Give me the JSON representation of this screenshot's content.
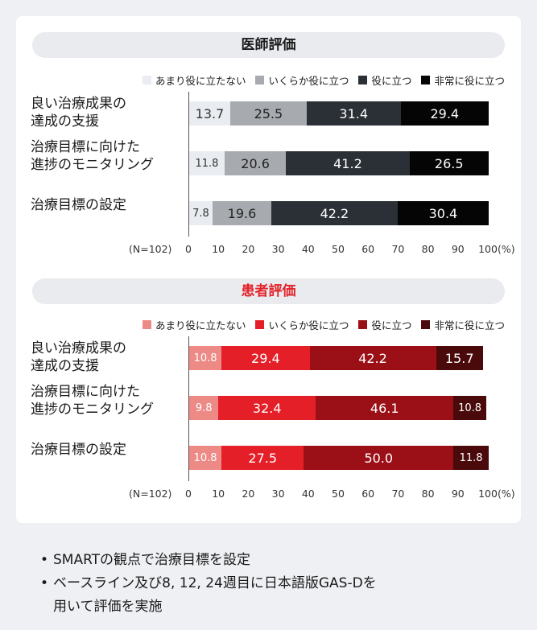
{
  "chart_data": [
    {
      "type": "bar",
      "stacked": true,
      "orientation": "horizontal",
      "title": "医師評価",
      "categories": [
        "良い治療成果の\n達成の支援",
        "治療目標に向けた\n進捗のモニタリング",
        "治療目標の設定"
      ],
      "series": [
        {
          "name": "あまり役に立たない",
          "color": "#e9ecf0",
          "text_color": "#333333",
          "values": [
            13.7,
            11.8,
            7.8
          ]
        },
        {
          "name": "いくらか役に立つ",
          "color": "#a7aaae",
          "text_color": "#222222",
          "values": [
            25.5,
            20.6,
            19.6
          ]
        },
        {
          "name": "役に立つ",
          "color": "#2b3037",
          "text_color": "#ffffff",
          "values": [
            31.4,
            41.2,
            42.2
          ]
        },
        {
          "name": "非常に役に立つ",
          "color": "#050505",
          "text_color": "#ffffff",
          "values": [
            29.4,
            26.5,
            30.4
          ]
        }
      ],
      "labels": [
        [
          "13.7",
          "25.5",
          "31.4",
          "29.4"
        ],
        [
          "11.8",
          "20.6",
          "41.2",
          "26.5"
        ],
        [
          "7.8",
          "19.6",
          "42.2",
          "30.4"
        ]
      ],
      "n_label": "(N=102)",
      "xticks": [
        "0",
        "10",
        "20",
        "30",
        "40",
        "50",
        "60",
        "70",
        "80",
        "90",
        "100"
      ],
      "unit": "(%)",
      "xlim": [
        0,
        100
      ]
    },
    {
      "type": "bar",
      "stacked": true,
      "orientation": "horizontal",
      "title": "患者評価",
      "title_color": "#e3232b",
      "categories": [
        "良い治療成果の\n達成の支援",
        "治療目標に向けた\n進捗のモニタリング",
        "治療目標の設定"
      ],
      "series": [
        {
          "name": "あまり役に立たない",
          "color": "#ee8a86",
          "text_color": "#ffffff",
          "values": [
            10.8,
            9.8,
            10.8
          ]
        },
        {
          "name": "いくらか役に立つ",
          "color": "#e41f27",
          "text_color": "#ffffff",
          "values": [
            29.4,
            32.4,
            27.5
          ]
        },
        {
          "name": "役に立つ",
          "color": "#9b0f17",
          "text_color": "#ffffff",
          "values": [
            42.2,
            46.1,
            50.0
          ]
        },
        {
          "name": "非常に役に立つ",
          "color": "#4a0a0c",
          "text_color": "#ffffff",
          "values": [
            15.7,
            10.8,
            11.8
          ]
        }
      ],
      "labels": [
        [
          "10.8",
          "29.4",
          "42.2",
          "15.7"
        ],
        [
          "9.8",
          "32.4",
          "46.1",
          "10.8"
        ],
        [
          "10.8",
          "27.5",
          "50.0",
          "11.8"
        ]
      ],
      "n_label": "(N=102)",
      "xticks": [
        "0",
        "10",
        "20",
        "30",
        "40",
        "50",
        "60",
        "70",
        "80",
        "90",
        "100"
      ],
      "unit": "(%)",
      "xlim": [
        0,
        100
      ]
    }
  ],
  "notes": [
    "SMARTの観点で治療目標を設定",
    "ベースライン及び8, 12, 24週目に日本語版GAS-Dを\n用いて評価を実施"
  ],
  "bullet": "•"
}
